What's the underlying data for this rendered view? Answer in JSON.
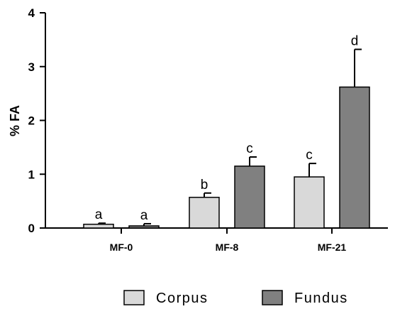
{
  "chart_data": {
    "type": "bar",
    "ylabel": "% FA",
    "xlabel": "",
    "ylim": [
      0,
      4
    ],
    "yticks": [
      0,
      1,
      2,
      3,
      4
    ],
    "grid": false,
    "legend_position": "bottom-center",
    "categories": [
      "MF-0",
      "MF-8",
      "MF-21"
    ],
    "series": [
      {
        "name": "Corpus",
        "color": "#d9d9d9",
        "values": [
          0.07,
          0.57,
          0.95
        ],
        "errors": [
          0.02,
          0.08,
          0.25
        ],
        "labels": [
          "a",
          "b",
          "c"
        ]
      },
      {
        "name": "Fundus",
        "color": "#808080",
        "values": [
          0.04,
          1.15,
          2.62
        ],
        "errors": [
          0.04,
          0.17,
          0.7
        ],
        "labels": [
          "a",
          "c",
          "d"
        ]
      }
    ]
  }
}
